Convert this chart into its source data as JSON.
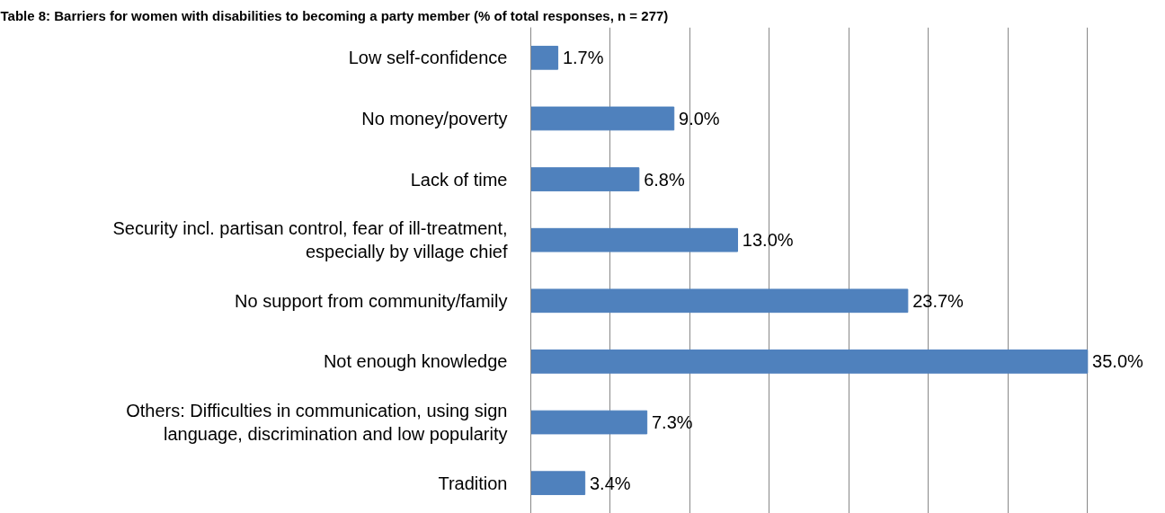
{
  "chart_data": {
    "type": "bar",
    "orientation": "horizontal",
    "title": "Table 8: Barriers for women with disabilities to becoming a party member (% of total responses, n = 277)",
    "categories": [
      "Low self-confidence",
      "No money/poverty",
      "Lack of time",
      "Security incl. partisan control, fear of ill-treatment, especially by village chief",
      "No support from community/family",
      "Not enough knowledge",
      "Others: Difficulties in communication, using sign language, discrimination and low popularity",
      "Tradition"
    ],
    "values": [
      1.7,
      9.0,
      6.8,
      13.0,
      23.7,
      35.0,
      7.3,
      3.4
    ],
    "value_labels": [
      "1.7%",
      "9.0%",
      "6.8%",
      "13.0%",
      "23.7%",
      "35.0%",
      "7.3%",
      "3.4%"
    ],
    "color": "#4f81bd",
    "xticks": [
      {
        "value": 0,
        "label": null
      },
      {
        "value": 5,
        "label": null
      },
      {
        "value": 10,
        "label": null
      },
      {
        "value": 15,
        "label": null
      },
      {
        "value": 20,
        "label": null
      },
      {
        "value": 25,
        "label": null
      },
      {
        "value": 30,
        "label": null
      },
      {
        "value": 35,
        "label": null
      }
    ],
    "grid": "x",
    "tick_labels": "y"
  }
}
